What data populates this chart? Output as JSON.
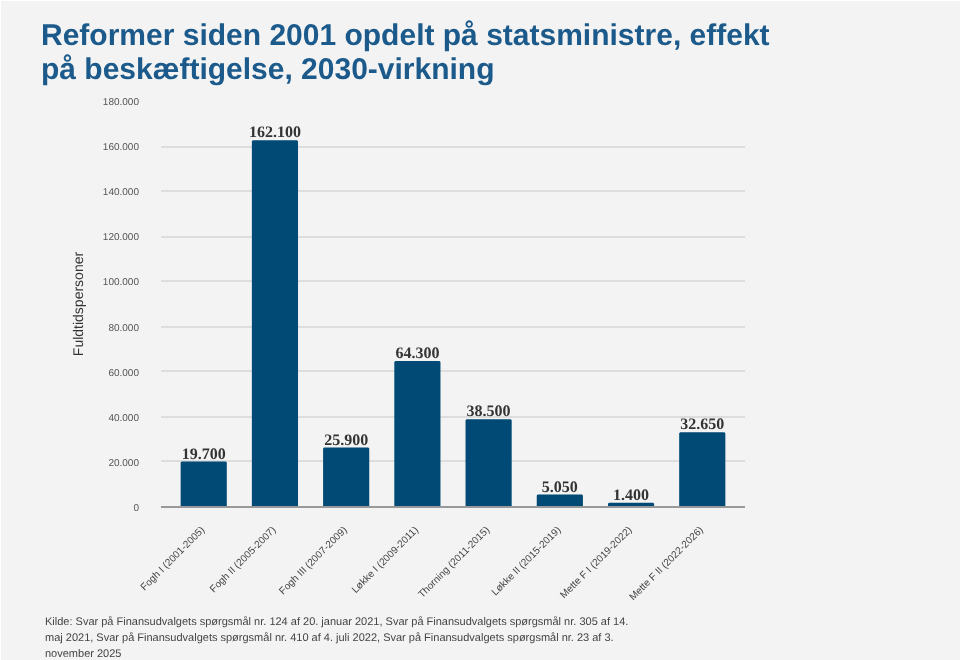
{
  "chart_data": {
    "type": "bar",
    "title": "Reformer siden 2001 opdelt på statsministre, effekt på beskæftigelse, 2030-virkning",
    "ylabel": "Fuldtidspersoner",
    "categories": [
      "Fogh I (2001-2005)",
      "Fogh II (2005-2007)",
      "Fogh III (2007-2009)",
      "Løkke I (2009-2011)",
      "Thorning (2011-2015)",
      "Løkke II (2015-2019)",
      "Mette F I (2019-2022)",
      "Mette F II (2022-2026)"
    ],
    "values": [
      19700,
      162100,
      25900,
      64300,
      38500,
      5050,
      1400,
      32650
    ],
    "value_labels": [
      "19.700",
      "162.100",
      "25.900",
      "64.300",
      "38.500",
      "5.050",
      "1.400",
      "32.650"
    ],
    "color": "#004a75",
    "ylim": [
      0,
      180000
    ],
    "yticks": [
      0,
      {
        "value": 20000,
        "label": "20.000"
      },
      {
        "value": 40000,
        "label": "40.000"
      },
      {
        "value": 60000,
        "label": "60.000"
      },
      {
        "value": 80000,
        "label": "80.000"
      },
      {
        "value": 100000,
        "label": "100.000"
      },
      {
        "value": 120000,
        "label": "120.000"
      },
      {
        "value": 140000,
        "label": "140.000"
      },
      {
        "value": 160000,
        "label": "160.000"
      },
      {
        "value": 180000,
        "label": "180.000"
      }
    ],
    "grid": "y",
    "annotations": [
      "Kilde: Svar på Finansudvalgets spørgsmål nr. 124 af 20. januar 2021, Svar på Finansudvalgets spørgsmål nr. 305 af 14. maj 2021, Svar på Finansudvalgets spørgsmål nr. 410 af 4. juli 2022, Svar på Finansudvalgets spørgsmål nr. 23 af 3. november 2025"
    ]
  }
}
